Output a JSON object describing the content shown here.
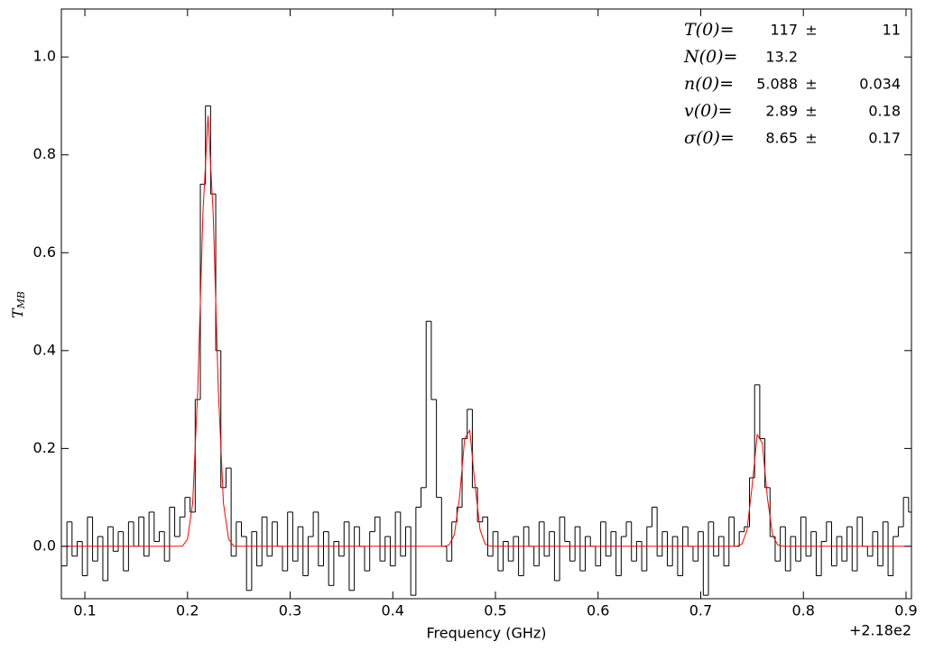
{
  "chart_data": {
    "type": "step",
    "xlabel": "Frequency (GHz)",
    "x_offset_label": "+2.18e2",
    "ylabel": {
      "main": "T",
      "sub": "MB"
    },
    "xlim": [
      0.0771,
      0.9053
    ],
    "ylim": [
      -0.107,
      1.098
    ],
    "xticks": [
      0.1,
      0.2,
      0.3,
      0.4,
      0.5,
      0.6,
      0.7,
      0.8,
      0.9
    ],
    "yticks": [
      {
        "value": 0,
        "label": "0.0"
      },
      0.2,
      0.4,
      0.6,
      0.8,
      {
        "value": 1,
        "label": "1.0"
      }
    ],
    "series": [
      {
        "kind": "data",
        "color": "#000000",
        "x": [
          0.08,
          0.085,
          0.09,
          0.095,
          0.1,
          0.105,
          0.11,
          0.115,
          0.12,
          0.125,
          0.13,
          0.135,
          0.14,
          0.145,
          0.15,
          0.155,
          0.16,
          0.165,
          0.17,
          0.175,
          0.18,
          0.185,
          0.19,
          0.195,
          0.2,
          0.205,
          0.21,
          0.215,
          0.22,
          0.225,
          0.23,
          0.235,
          0.24,
          0.245,
          0.25,
          0.255,
          0.26,
          0.265,
          0.27,
          0.275,
          0.28,
          0.285,
          0.29,
          0.295,
          0.3,
          0.305,
          0.31,
          0.315,
          0.32,
          0.325,
          0.33,
          0.335,
          0.34,
          0.345,
          0.35,
          0.355,
          0.36,
          0.365,
          0.37,
          0.375,
          0.38,
          0.385,
          0.39,
          0.395,
          0.4,
          0.405,
          0.41,
          0.415,
          0.42,
          0.425,
          0.43,
          0.435,
          0.44,
          0.445,
          0.45,
          0.455,
          0.46,
          0.465,
          0.47,
          0.475,
          0.48,
          0.485,
          0.49,
          0.495,
          0.5,
          0.505,
          0.51,
          0.515,
          0.52,
          0.525,
          0.53,
          0.535,
          0.54,
          0.545,
          0.55,
          0.555,
          0.56,
          0.565,
          0.57,
          0.575,
          0.58,
          0.585,
          0.59,
          0.595,
          0.6,
          0.605,
          0.61,
          0.615,
          0.62,
          0.625,
          0.63,
          0.635,
          0.64,
          0.645,
          0.65,
          0.655,
          0.66,
          0.665,
          0.67,
          0.675,
          0.68,
          0.685,
          0.69,
          0.695,
          0.7,
          0.705,
          0.71,
          0.715,
          0.72,
          0.725,
          0.73,
          0.735,
          0.74,
          0.745,
          0.75,
          0.755,
          0.76,
          0.765,
          0.77,
          0.775,
          0.78,
          0.785,
          0.79,
          0.795,
          0.8,
          0.805,
          0.81,
          0.815,
          0.82,
          0.825,
          0.83,
          0.835,
          0.84,
          0.845,
          0.85,
          0.855,
          0.86,
          0.865,
          0.87,
          0.875,
          0.88,
          0.885,
          0.89,
          0.895,
          0.9,
          0.905
        ],
        "values": [
          -0.04,
          0.05,
          -0.02,
          0.01,
          -0.06,
          0.06,
          -0.03,
          0.02,
          -0.07,
          0.04,
          -0.01,
          0.03,
          -0.05,
          0.05,
          0.0,
          0.06,
          -0.02,
          0.07,
          0.01,
          0.03,
          -0.03,
          0.08,
          0.02,
          0.06,
          0.1,
          0.07,
          0.3,
          0.74,
          0.9,
          0.72,
          0.4,
          0.12,
          0.16,
          -0.02,
          0.05,
          0.02,
          -0.09,
          0.03,
          -0.04,
          0.06,
          -0.02,
          0.05,
          0.0,
          -0.05,
          0.07,
          -0.03,
          0.04,
          -0.06,
          0.02,
          0.07,
          -0.04,
          0.03,
          -0.08,
          0.01,
          -0.02,
          0.05,
          -0.09,
          0.04,
          0.0,
          -0.05,
          0.03,
          0.06,
          -0.03,
          0.02,
          -0.04,
          0.07,
          -0.02,
          0.04,
          -0.1,
          0.08,
          0.12,
          0.46,
          0.3,
          0.1,
          0.0,
          -0.03,
          0.05,
          0.08,
          0.22,
          0.28,
          0.12,
          0.05,
          0.06,
          -0.02,
          0.03,
          -0.05,
          0.01,
          -0.03,
          0.02,
          -0.06,
          0.04,
          0.0,
          -0.04,
          0.05,
          -0.02,
          0.03,
          -0.07,
          0.06,
          0.01,
          -0.03,
          0.04,
          -0.05,
          0.02,
          0.0,
          -0.04,
          0.05,
          -0.02,
          0.03,
          -0.06,
          0.02,
          0.05,
          -0.03,
          0.01,
          -0.05,
          0.04,
          0.08,
          -0.02,
          0.03,
          -0.04,
          0.02,
          -0.06,
          0.04,
          0.0,
          -0.03,
          0.03,
          -0.1,
          0.05,
          -0.02,
          0.02,
          -0.04,
          0.06,
          0.0,
          0.03,
          0.04,
          0.14,
          0.33,
          0.22,
          0.12,
          0.02,
          -0.03,
          0.04,
          -0.05,
          0.02,
          -0.03,
          0.06,
          -0.02,
          0.03,
          -0.06,
          0.01,
          0.05,
          -0.04,
          0.02,
          -0.03,
          0.04,
          -0.05,
          0.06,
          0.0,
          -0.02,
          0.03,
          -0.04,
          0.05,
          -0.06,
          0.02,
          0.04,
          0.1,
          0.07
        ]
      },
      {
        "kind": "model",
        "color": "#ff0000",
        "x": [
          0.077,
          0.195,
          0.2,
          0.205,
          0.21,
          0.215,
          0.22,
          0.225,
          0.23,
          0.235,
          0.24,
          0.245,
          0.45,
          0.455,
          0.46,
          0.465,
          0.47,
          0.475,
          0.48,
          0.485,
          0.49,
          0.495,
          0.735,
          0.74,
          0.745,
          0.75,
          0.755,
          0.76,
          0.765,
          0.77,
          0.775,
          0.78,
          0.905
        ],
        "values": [
          0,
          0,
          0.015,
          0.088,
          0.32,
          0.68,
          0.88,
          0.68,
          0.32,
          0.088,
          0.015,
          0,
          0,
          0.003,
          0.024,
          0.1,
          0.22,
          0.237,
          0.127,
          0.034,
          0.0045,
          0,
          0,
          0.0043,
          0.032,
          0.122,
          0.228,
          0.211,
          0.098,
          0.023,
          0.003,
          0,
          0
        ]
      }
    ],
    "error_sign": "±",
    "annotations": [
      {
        "label": "T(0)=",
        "value": "117",
        "error": "11"
      },
      {
        "label": "N(0)=",
        "value": "13.2"
      },
      {
        "label": "n(0)=",
        "value": "5.088",
        "error": "0.034"
      },
      {
        "label": "v(0)=",
        "value": "2.89",
        "error": "0.18"
      },
      {
        "label": "σ(0)=",
        "value": "8.65",
        "error": "0.17"
      }
    ]
  }
}
